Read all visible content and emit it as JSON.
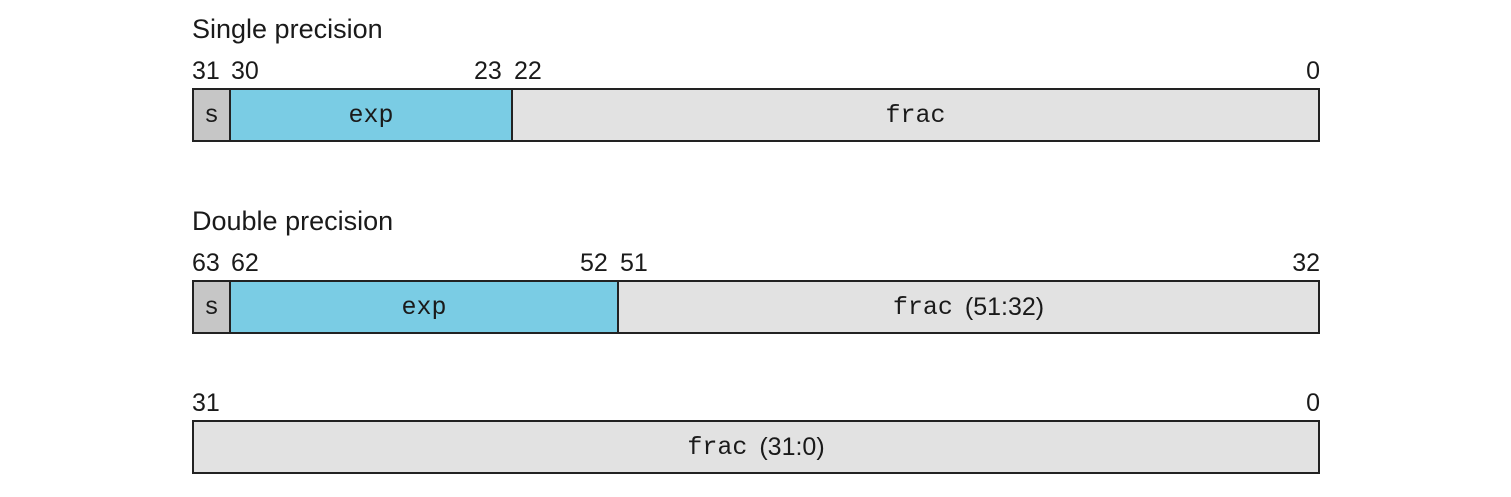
{
  "single": {
    "title": "Single precision",
    "bits": {
      "b31": "31",
      "b30": "30",
      "b23": "23",
      "b22": "22",
      "b0": "0"
    },
    "fields": {
      "s": "s",
      "exp": "exp",
      "frac": "frac"
    }
  },
  "double": {
    "title": "Double precision",
    "bits": {
      "b63": "63",
      "b62": "62",
      "b52": "52",
      "b51": "51",
      "b32": "32"
    },
    "fields": {
      "s": "s",
      "exp": "exp",
      "frac": "frac",
      "frac_range": "(51:32)"
    }
  },
  "double_low": {
    "bits": {
      "b31": "31",
      "b0": "0"
    },
    "fields": {
      "frac": "frac",
      "frac_range": "(31:0)"
    }
  },
  "colors": {
    "sign": "#c6c6c6",
    "exp": "#7accE4",
    "frac": "#e2e2e2",
    "border": "#222222"
  }
}
